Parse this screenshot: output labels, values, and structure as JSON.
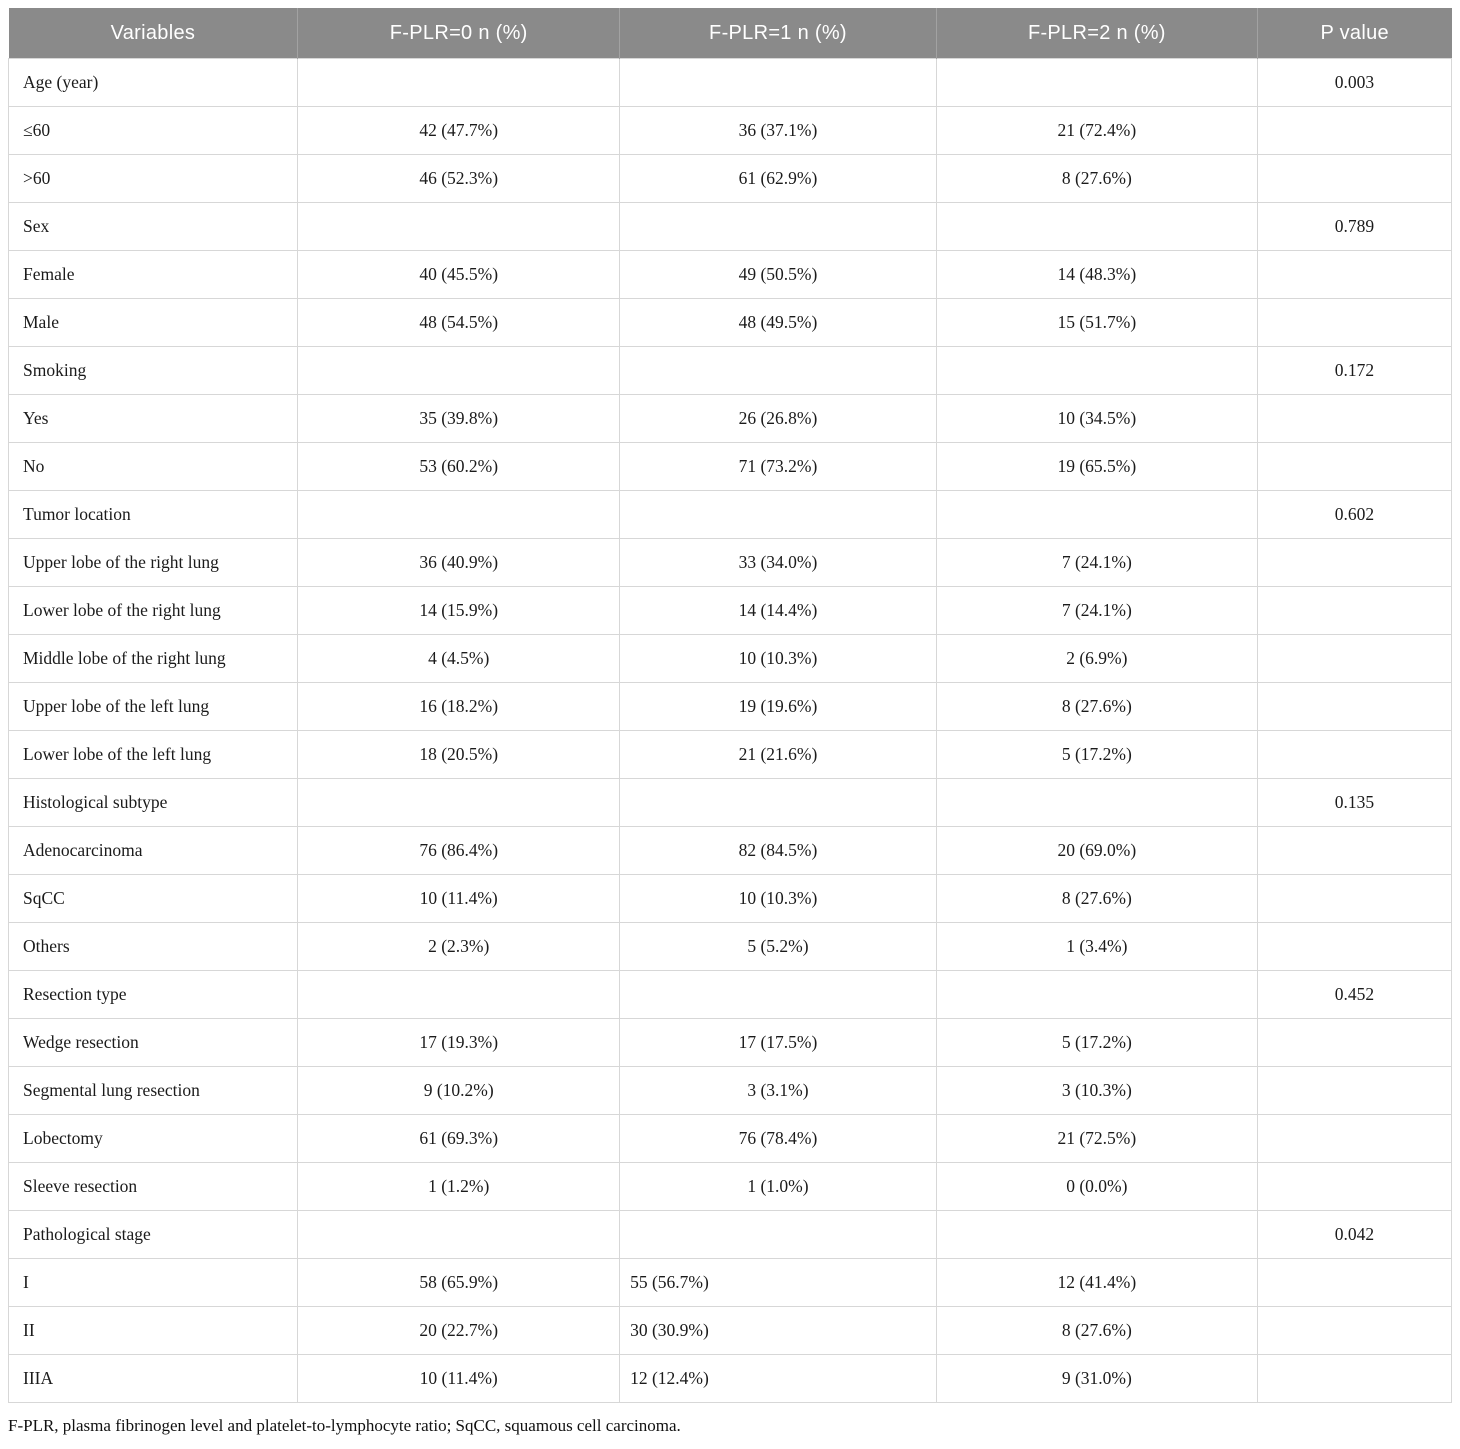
{
  "colors": {
    "header_bg": "#8a8a8a",
    "header_text": "#ffffff",
    "grid_border": "#d7d7d7",
    "body_text": "#1b1b1b"
  },
  "table": {
    "headers": [
      "Variables",
      "F-PLR=0 n (%)",
      "F-PLR=1 n (%)",
      "F-PLR=2 n (%)",
      "P value"
    ],
    "rows": [
      {
        "label": "Age (year)",
        "c1": "",
        "c2": "",
        "c3": "",
        "p": "0.003"
      },
      {
        "label": "≤60",
        "c1": "42 (47.7%)",
        "c2": "36 (37.1%)",
        "c3": "21 (72.4%)",
        "p": ""
      },
      {
        "label": ">60",
        "c1": "46 (52.3%)",
        "c2": "61 (62.9%)",
        "c3": "8 (27.6%)",
        "p": ""
      },
      {
        "label": "Sex",
        "c1": "",
        "c2": "",
        "c3": "",
        "p": "0.789"
      },
      {
        "label": "Female",
        "c1": "40 (45.5%)",
        "c2": "49 (50.5%)",
        "c3": "14 (48.3%)",
        "p": ""
      },
      {
        "label": "Male",
        "c1": "48 (54.5%)",
        "c2": "48 (49.5%)",
        "c3": "15 (51.7%)",
        "p": ""
      },
      {
        "label": "Smoking",
        "c1": "",
        "c2": "",
        "c3": "",
        "p": "0.172"
      },
      {
        "label": "Yes",
        "c1": "35 (39.8%)",
        "c2": "26 (26.8%)",
        "c3": "10 (34.5%)",
        "p": ""
      },
      {
        "label": "No",
        "c1": "53 (60.2%)",
        "c2": "71 (73.2%)",
        "c3": "19 (65.5%)",
        "p": ""
      },
      {
        "label": "Tumor location",
        "c1": "",
        "c2": "",
        "c3": "",
        "p": "0.602"
      },
      {
        "label": "Upper lobe of the right lung",
        "c1": "36 (40.9%)",
        "c2": "33 (34.0%)",
        "c3": "7 (24.1%)",
        "p": ""
      },
      {
        "label": "Lower lobe of the right lung",
        "c1": "14 (15.9%)",
        "c2": "14 (14.4%)",
        "c3": "7 (24.1%)",
        "p": ""
      },
      {
        "label": "Middle lobe of the right lung",
        "c1": "4 (4.5%)",
        "c2": "10 (10.3%)",
        "c3": "2 (6.9%)",
        "p": ""
      },
      {
        "label": "Upper lobe of the left lung",
        "c1": "16 (18.2%)",
        "c2": "19 (19.6%)",
        "c3": "8 (27.6%)",
        "p": ""
      },
      {
        "label": "Lower lobe of the left lung",
        "c1": "18 (20.5%)",
        "c2": "21 (21.6%)",
        "c3": "5 (17.2%)",
        "p": ""
      },
      {
        "label": "Histological subtype",
        "c1": "",
        "c2": "",
        "c3": "",
        "p": "0.135"
      },
      {
        "label": "Adenocarcinoma",
        "c1": "76 (86.4%)",
        "c2": "82 (84.5%)",
        "c3": "20 (69.0%)",
        "p": ""
      },
      {
        "label": "SqCC",
        "c1": "10 (11.4%)",
        "c2": "10 (10.3%)",
        "c3": "8 (27.6%)",
        "p": ""
      },
      {
        "label": "Others",
        "c1": "2 (2.3%)",
        "c2": "5 (5.2%)",
        "c3": "1 (3.4%)",
        "p": ""
      },
      {
        "label": "Resection type",
        "c1": "",
        "c2": "",
        "c3": "",
        "p": "0.452"
      },
      {
        "label": "Wedge resection",
        "c1": "17 (19.3%)",
        "c2": "17 (17.5%)",
        "c3": "5 (17.2%)",
        "p": ""
      },
      {
        "label": "Segmental lung resection",
        "c1": "9 (10.2%)",
        "c2": "3 (3.1%)",
        "c3": "3 (10.3%)",
        "p": ""
      },
      {
        "label": "Lobectomy",
        "c1": "61 (69.3%)",
        "c2": "76 (78.4%)",
        "c3": "21 (72.5%)",
        "p": ""
      },
      {
        "label": "Sleeve resection",
        "c1": "1 (1.2%)",
        "c2": "1 (1.0%)",
        "c3": "0 (0.0%)",
        "p": ""
      },
      {
        "label": "Pathological stage",
        "c1": "",
        "c2": "",
        "c3": "",
        "p": "0.042"
      },
      {
        "label": "I",
        "c1": "58 (65.9%)",
        "c2": "55 (56.7%)",
        "c3": "12 (41.4%)",
        "p": "",
        "c2_align": "left"
      },
      {
        "label": "II",
        "c1": "20 (22.7%)",
        "c2": "30 (30.9%)",
        "c3": "8 (27.6%)",
        "p": "",
        "c2_align": "left"
      },
      {
        "label": "IIIA",
        "c1": "10 (11.4%)",
        "c2": "12 (12.4%)",
        "c3": "9 (31.0%)",
        "p": "",
        "c2_align": "left"
      }
    ],
    "footnote": "F-PLR, plasma fibrinogen level and platelet-to-lymphocyte ratio; SqCC, squamous cell carcinoma."
  }
}
